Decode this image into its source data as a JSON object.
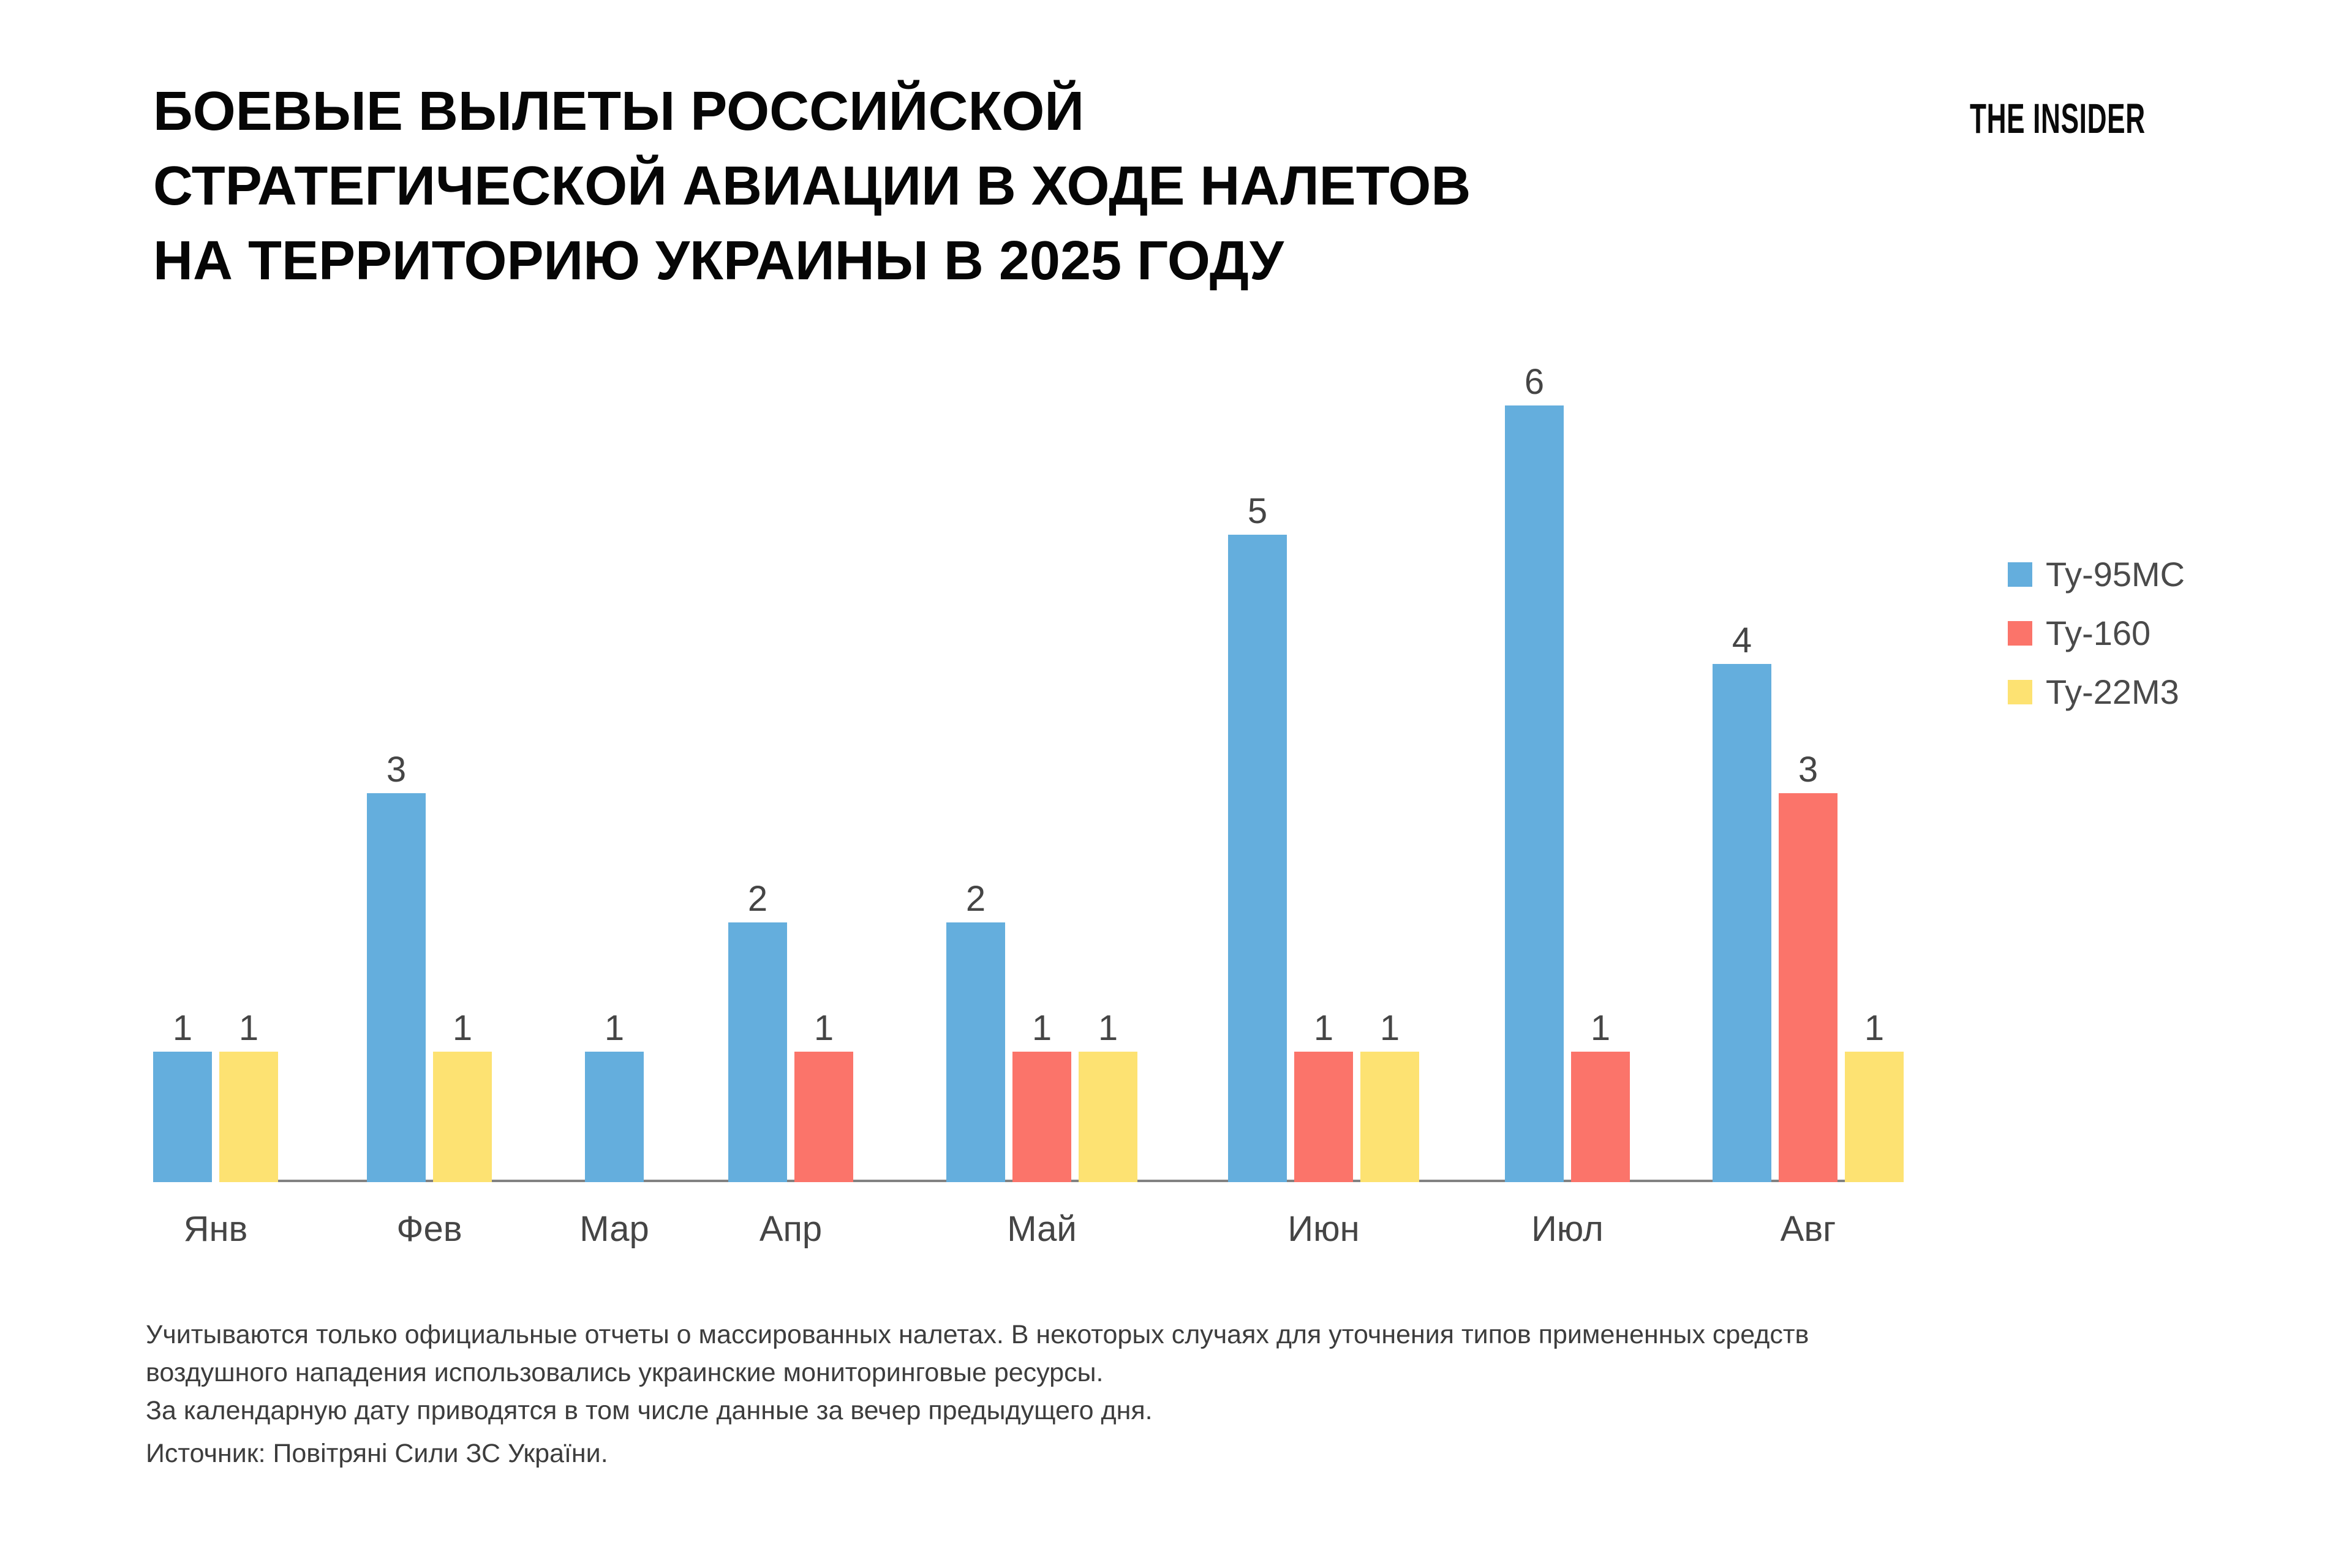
{
  "page": {
    "logo": "THE INSIDER",
    "title_lines": [
      "БОЕВЫЕ ВЫЛЕТЫ РОССИЙСКОЙ",
      "СТРАТЕГИЧЕСКОЙ АВИАЦИИ В ХОДЕ НАЛЕТОВ",
      "НА ТЕРРИТОРИЮ УКРАИНЫ В 2025 ГОДУ"
    ]
  },
  "chart_data": {
    "type": "bar",
    "title": "БОЕВЫЕ ВЫЛЕТЫ РОССИЙСКОЙ СТРАТЕГИЧЕСКОЙ АВИАЦИИ В ХОДЕ НАЛЕТОВ НА ТЕРРИТОРИЮ УКРАИНЫ В 2025 ГОДУ",
    "categories": [
      "Янв",
      "Фев",
      "Мар",
      "Апр",
      "Май",
      "Июн",
      "Июл",
      "Авг"
    ],
    "series": [
      {
        "name": "Ту-95МС",
        "color": "#64AEDD",
        "values": [
          1,
          3,
          1,
          2,
          2,
          5,
          6,
          4
        ]
      },
      {
        "name": "Ту-160",
        "color": "#FB746A",
        "values": [
          0,
          0,
          0,
          1,
          1,
          1,
          1,
          3
        ]
      },
      {
        "name": "Ту-22М3",
        "color": "#FDE272",
        "values": [
          1,
          1,
          0,
          0,
          1,
          1,
          0,
          1
        ]
      }
    ],
    "ylim": [
      0,
      6
    ],
    "grid": false,
    "legend_position": "right",
    "value_labels": "shown above each bar; zero values have no bar and no label",
    "xlabel": "",
    "ylabel": ""
  },
  "footnote": {
    "lines": [
      "Учитываются только официальные отчеты о массированных налетах. В некоторых случаях для уточнения типов примененных средств",
      "воздушного нападения использовались украинские мониторинговые ресурсы.",
      "За календарную дату приводятся в том числе данные за вечер предыдущего дня."
    ],
    "source": "Источник: Повітряні Сили ЗС України."
  }
}
